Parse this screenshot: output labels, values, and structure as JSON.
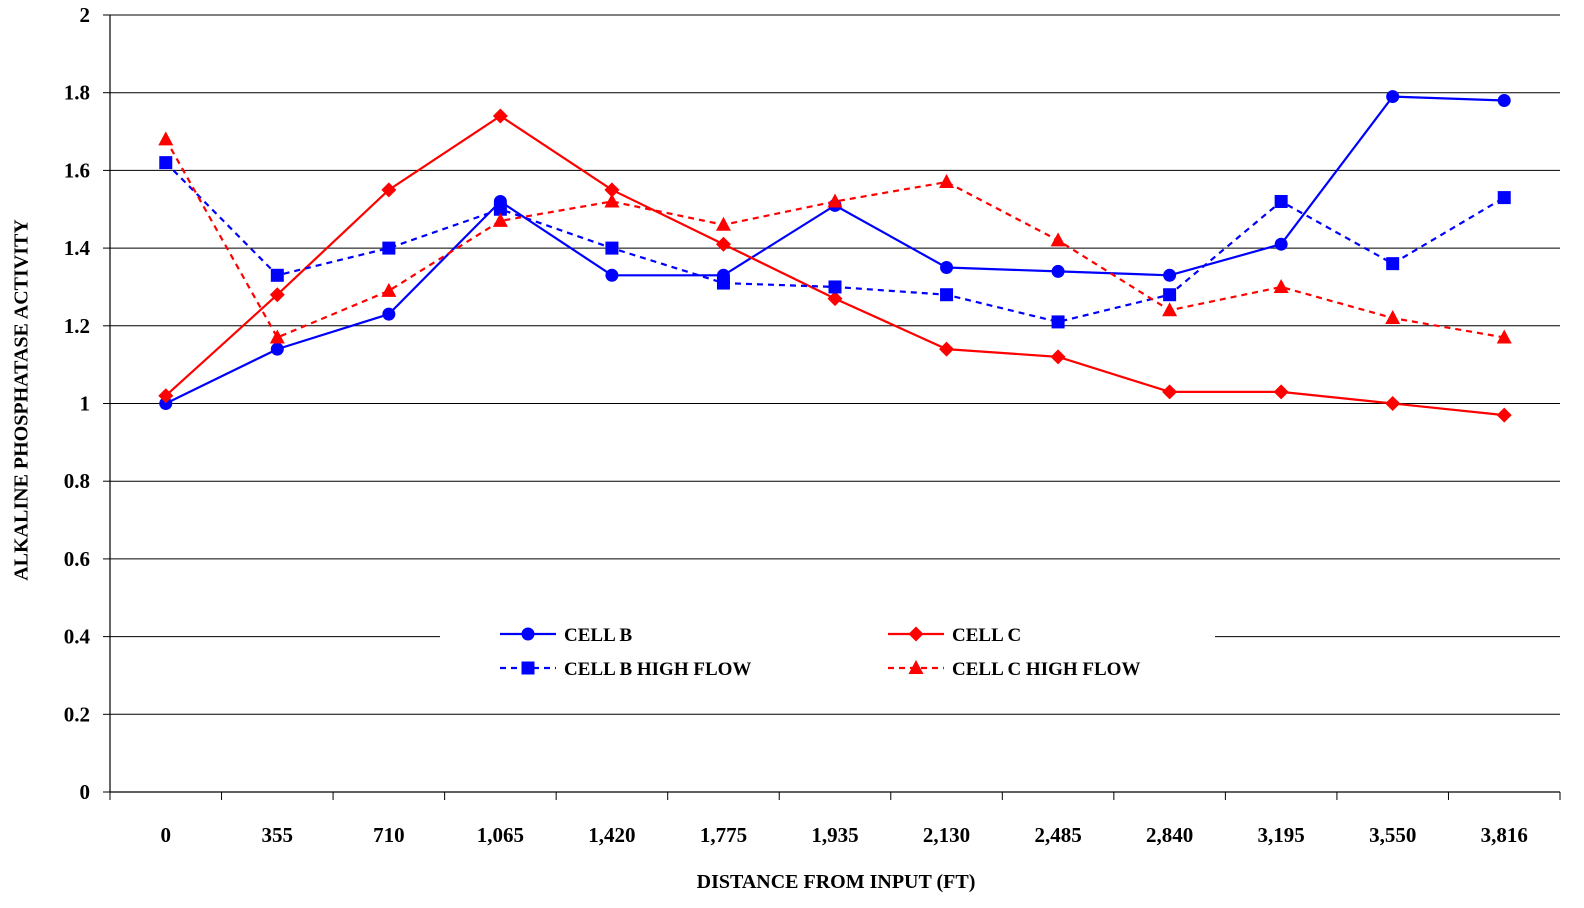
{
  "chart_data": {
    "type": "line",
    "title": "",
    "xlabel": "DISTANCE FROM INPUT (FT)",
    "ylabel": "ALKALINE PHOSPHATASE ACTIVITY",
    "categories": [
      "0",
      "355",
      "710",
      "1,065",
      "1,420",
      "1,775",
      "1,935",
      "2,130",
      "2,485",
      "2,840",
      "3,195",
      "3,550",
      "3,816"
    ],
    "ylim": [
      0,
      2
    ],
    "yticks": [
      "0",
      "0.2",
      "0.4",
      "0.6",
      "0.8",
      "1",
      "1.2",
      "1.4",
      "1.6",
      "1.8",
      "2"
    ],
    "grid": true,
    "legend_position": "center",
    "series": [
      {
        "name": "CELL B",
        "color": "#0000ff",
        "dash": "solid",
        "marker": "circle",
        "values": [
          1.0,
          1.14,
          1.23,
          1.52,
          1.33,
          1.33,
          1.51,
          1.35,
          1.34,
          1.33,
          1.41,
          1.79,
          1.78
        ]
      },
      {
        "name": "CELL C",
        "color": "#ff0000",
        "dash": "solid",
        "marker": "diamond",
        "values": [
          1.02,
          1.28,
          1.55,
          1.74,
          1.55,
          1.41,
          1.27,
          1.14,
          1.12,
          1.03,
          1.03,
          1.0,
          0.97
        ]
      },
      {
        "name": "CELL B HIGH FLOW",
        "color": "#0000ff",
        "dash": "dashed",
        "marker": "square",
        "values": [
          1.62,
          1.33,
          1.4,
          1.5,
          1.4,
          1.31,
          1.3,
          1.28,
          1.21,
          1.28,
          1.52,
          1.36,
          1.53
        ]
      },
      {
        "name": "CELL C HIGH FLOW",
        "color": "#ff0000",
        "dash": "dashed",
        "marker": "triangle",
        "values": [
          1.68,
          1.17,
          1.29,
          1.47,
          1.52,
          1.46,
          1.52,
          1.57,
          1.42,
          1.24,
          1.3,
          1.22,
          1.17
        ]
      }
    ]
  }
}
